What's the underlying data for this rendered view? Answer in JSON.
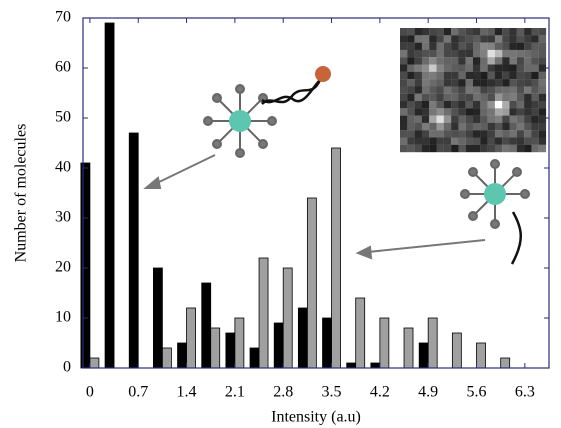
{
  "chart_data": {
    "type": "bar",
    "xlabel": "Intensity (a.u)",
    "ylabel": "Number of molecules",
    "x": [
      0,
      0.35,
      0.7,
      1.05,
      1.4,
      1.75,
      2.1,
      2.45,
      2.8,
      3.15,
      3.5,
      3.85,
      4.2,
      4.55,
      4.9,
      5.25,
      5.6,
      5.95
    ],
    "series": [
      {
        "color": "#000000",
        "values": [
          41,
          69,
          47,
          20,
          5,
          17,
          7,
          4,
          9,
          12,
          10,
          1,
          1,
          0,
          5,
          0,
          0,
          0
        ]
      },
      {
        "color": "#a0a0a0",
        "values": [
          2,
          0,
          0,
          4,
          12,
          8,
          10,
          22,
          20,
          34,
          44,
          14,
          10,
          8,
          10,
          7,
          5,
          2
        ]
      }
    ],
    "xlim": [
      -0.1,
      6.65
    ],
    "ylim": [
      0,
      70
    ],
    "xticks": [
      0,
      0.7,
      1.4,
      2.1,
      2.8,
      3.5,
      4.2,
      4.9,
      5.6,
      6.3
    ],
    "yticks": [
      0,
      10,
      20,
      30,
      40,
      50,
      60,
      70
    ]
  }
}
